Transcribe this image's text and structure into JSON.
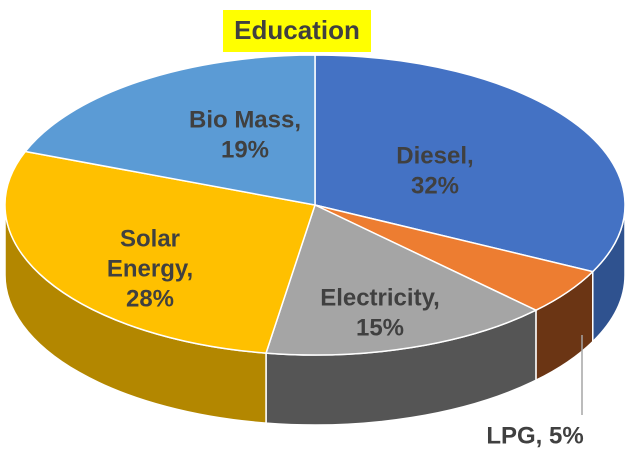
{
  "chart_data": {
    "type": "pie3d",
    "title": "Education",
    "values": [
      32,
      5,
      15,
      28,
      19
    ],
    "value_labels": [
      [
        "Diesel,",
        "32%"
      ],
      [
        "LPG, 5%"
      ],
      [
        "Electricity,",
        "15%"
      ],
      [
        "Solar",
        "Energy,",
        "28%"
      ],
      [
        "Bio Mass,",
        "19%"
      ]
    ],
    "colors": [
      "#4472c4",
      "#ed7d31",
      "#a5a5a5",
      "#ffc000",
      "#5b9bd5"
    ],
    "side_colors": [
      "#2f528f",
      "#6b3514",
      "#555555",
      "#b38700",
      "#3f6f99"
    ]
  }
}
